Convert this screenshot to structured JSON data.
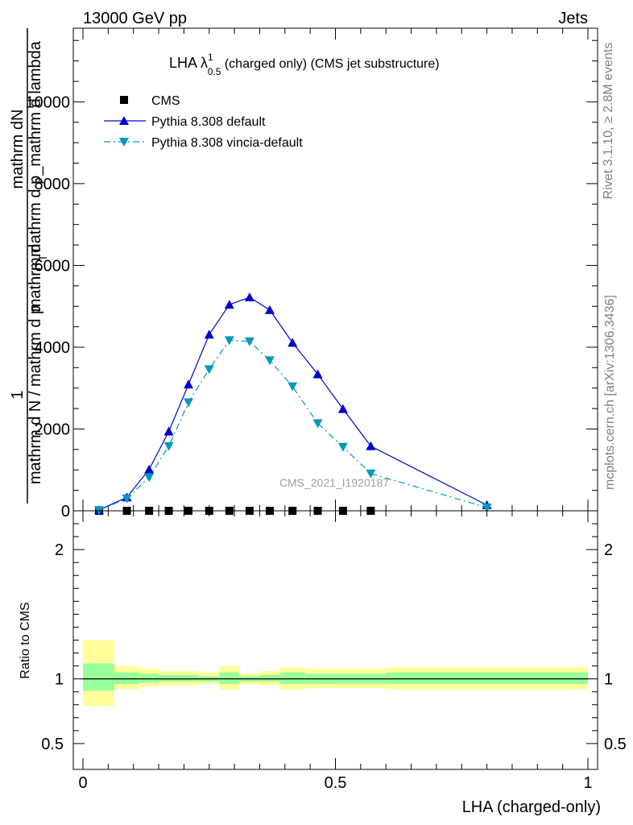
{
  "header": {
    "left": "13000 GeV pp",
    "right": "Jets"
  },
  "side_labels": {
    "rivet": "Rivet 3.1.10, ≥ 2.8M events",
    "mcplots": "mcplots.cern.ch [arXiv:1306.3436]"
  },
  "chart_data": [
    {
      "type": "line",
      "title": {
        "main": "LHA λ",
        "sup": "1",
        "sub": "0.5",
        "rest": " (charged only) (CMS jet substructure)"
      },
      "watermark": "CMS_2021_I1920187",
      "ylabel": {
        "numerator_one": "1",
        "numerator": "mathrm dN",
        "denominator": "mathrm d p_mathrm d lambda",
        "left_line": "mathrm d N / mathrm d p",
        "left_sub": "T",
        "left_rest": "mathrm d"
      },
      "xlim": [
        0,
        1
      ],
      "ylim": [
        0,
        11800
      ],
      "yticks": [
        {
          "v": 0,
          "label": "0"
        },
        {
          "v": 2000,
          "label": "2000"
        },
        {
          "v": 4000,
          "label": "4000"
        },
        {
          "v": 6000,
          "label": "6000"
        },
        {
          "v": 8000,
          "label": "8000"
        },
        {
          "v": 10000,
          "label": "10000"
        }
      ],
      "legend": {
        "position": "top-left",
        "entries": [
          {
            "label": "CMS",
            "marker": "square",
            "color": "#000000"
          },
          {
            "label": "Pythia 8.308 default",
            "marker": "triangle-up",
            "color": "#0000cc"
          },
          {
            "label": "Pythia 8.308 vincia-default",
            "marker": "triangle-down",
            "color": "#0099bb"
          }
        ]
      },
      "series": [
        {
          "name": "CMS",
          "style": "markers",
          "color": "#000000",
          "x": [
            0.032,
            0.087,
            0.131,
            0.17,
            0.209,
            0.25,
            0.29,
            0.33,
            0.37,
            0.415,
            0.465,
            0.515,
            0.57
          ],
          "y": [
            0,
            0,
            0,
            0,
            0,
            0,
            0,
            0,
            0,
            0,
            0,
            0,
            0
          ]
        },
        {
          "name": "Pythia 8.308 default",
          "style": "solid",
          "color": "#0000cc",
          "x": [
            0.032,
            0.087,
            0.131,
            0.17,
            0.209,
            0.25,
            0.29,
            0.33,
            0.37,
            0.415,
            0.465,
            0.515,
            0.57,
            0.8
          ],
          "y": [
            20,
            330,
            1010,
            1940,
            3090,
            4310,
            5040,
            5220,
            4910,
            4110,
            3340,
            2490,
            1580,
            140
          ]
        },
        {
          "name": "Pythia 8.308 vincia-default",
          "style": "dashdot",
          "color": "#0099bb",
          "x": [
            0.032,
            0.087,
            0.131,
            0.17,
            0.209,
            0.25,
            0.29,
            0.33,
            0.37,
            0.415,
            0.465,
            0.515,
            0.57,
            0.8
          ],
          "y": [
            15,
            300,
            820,
            1580,
            2650,
            3460,
            4170,
            4140,
            3680,
            3040,
            2140,
            1560,
            910,
            80
          ]
        }
      ]
    },
    {
      "type": "area",
      "ylabel": "Ratio to CMS",
      "xlabel": "LHA (charged-only)",
      "xlim": [
        0,
        1
      ],
      "ylim": [
        0.3,
        2.3
      ],
      "yticks": [
        {
          "v": 0.5,
          "label": "0.5"
        },
        {
          "v": 1,
          "label": "1"
        },
        {
          "v": 2,
          "label": "2"
        }
      ],
      "xticks": [
        {
          "v": 0,
          "label": "0"
        },
        {
          "v": 0.5,
          "label": "0.5"
        },
        {
          "v": 1,
          "label": "1"
        }
      ],
      "reference_line": 1,
      "band_colors": {
        "outer": "#ffff99",
        "inner": "#99ff99"
      },
      "bands": [
        {
          "x0": 0.0,
          "x1": 0.062,
          "outer_lo": 0.79,
          "outer_hi": 1.3,
          "inner_lo": 0.91,
          "inner_hi": 1.12
        },
        {
          "x0": 0.062,
          "x1": 0.112,
          "outer_lo": 0.92,
          "outer_hi": 1.1,
          "inner_lo": 0.96,
          "inner_hi": 1.05
        },
        {
          "x0": 0.112,
          "x1": 0.15,
          "outer_lo": 0.94,
          "outer_hi": 1.08,
          "inner_lo": 0.97,
          "inner_hi": 1.04
        },
        {
          "x0": 0.15,
          "x1": 0.19,
          "outer_lo": 0.95,
          "outer_hi": 1.06,
          "inner_lo": 0.98,
          "inner_hi": 1.03
        },
        {
          "x0": 0.19,
          "x1": 0.23,
          "outer_lo": 0.95,
          "outer_hi": 1.06,
          "inner_lo": 0.98,
          "inner_hi": 1.03
        },
        {
          "x0": 0.23,
          "x1": 0.27,
          "outer_lo": 0.96,
          "outer_hi": 1.05,
          "inner_lo": 0.98,
          "inner_hi": 1.02
        },
        {
          "x0": 0.27,
          "x1": 0.31,
          "outer_lo": 0.92,
          "outer_hi": 1.1,
          "inner_lo": 0.96,
          "inner_hi": 1.05
        },
        {
          "x0": 0.31,
          "x1": 0.35,
          "outer_lo": 0.96,
          "outer_hi": 1.04,
          "inner_lo": 0.98,
          "inner_hi": 1.02
        },
        {
          "x0": 0.35,
          "x1": 0.39,
          "outer_lo": 0.95,
          "outer_hi": 1.06,
          "inner_lo": 0.98,
          "inner_hi": 1.03
        },
        {
          "x0": 0.39,
          "x1": 0.44,
          "outer_lo": 0.92,
          "outer_hi": 1.09,
          "inner_lo": 0.96,
          "inner_hi": 1.05
        },
        {
          "x0": 0.44,
          "x1": 0.49,
          "outer_lo": 0.93,
          "outer_hi": 1.08,
          "inner_lo": 0.96,
          "inner_hi": 1.04
        },
        {
          "x0": 0.49,
          "x1": 0.54,
          "outer_lo": 0.93,
          "outer_hi": 1.08,
          "inner_lo": 0.96,
          "inner_hi": 1.04
        },
        {
          "x0": 0.54,
          "x1": 0.6,
          "outer_lo": 0.93,
          "outer_hi": 1.08,
          "inner_lo": 0.96,
          "inner_hi": 1.04
        },
        {
          "x0": 0.6,
          "x1": 1.0,
          "outer_lo": 0.92,
          "outer_hi": 1.09,
          "inner_lo": 0.96,
          "inner_hi": 1.05
        }
      ]
    }
  ]
}
